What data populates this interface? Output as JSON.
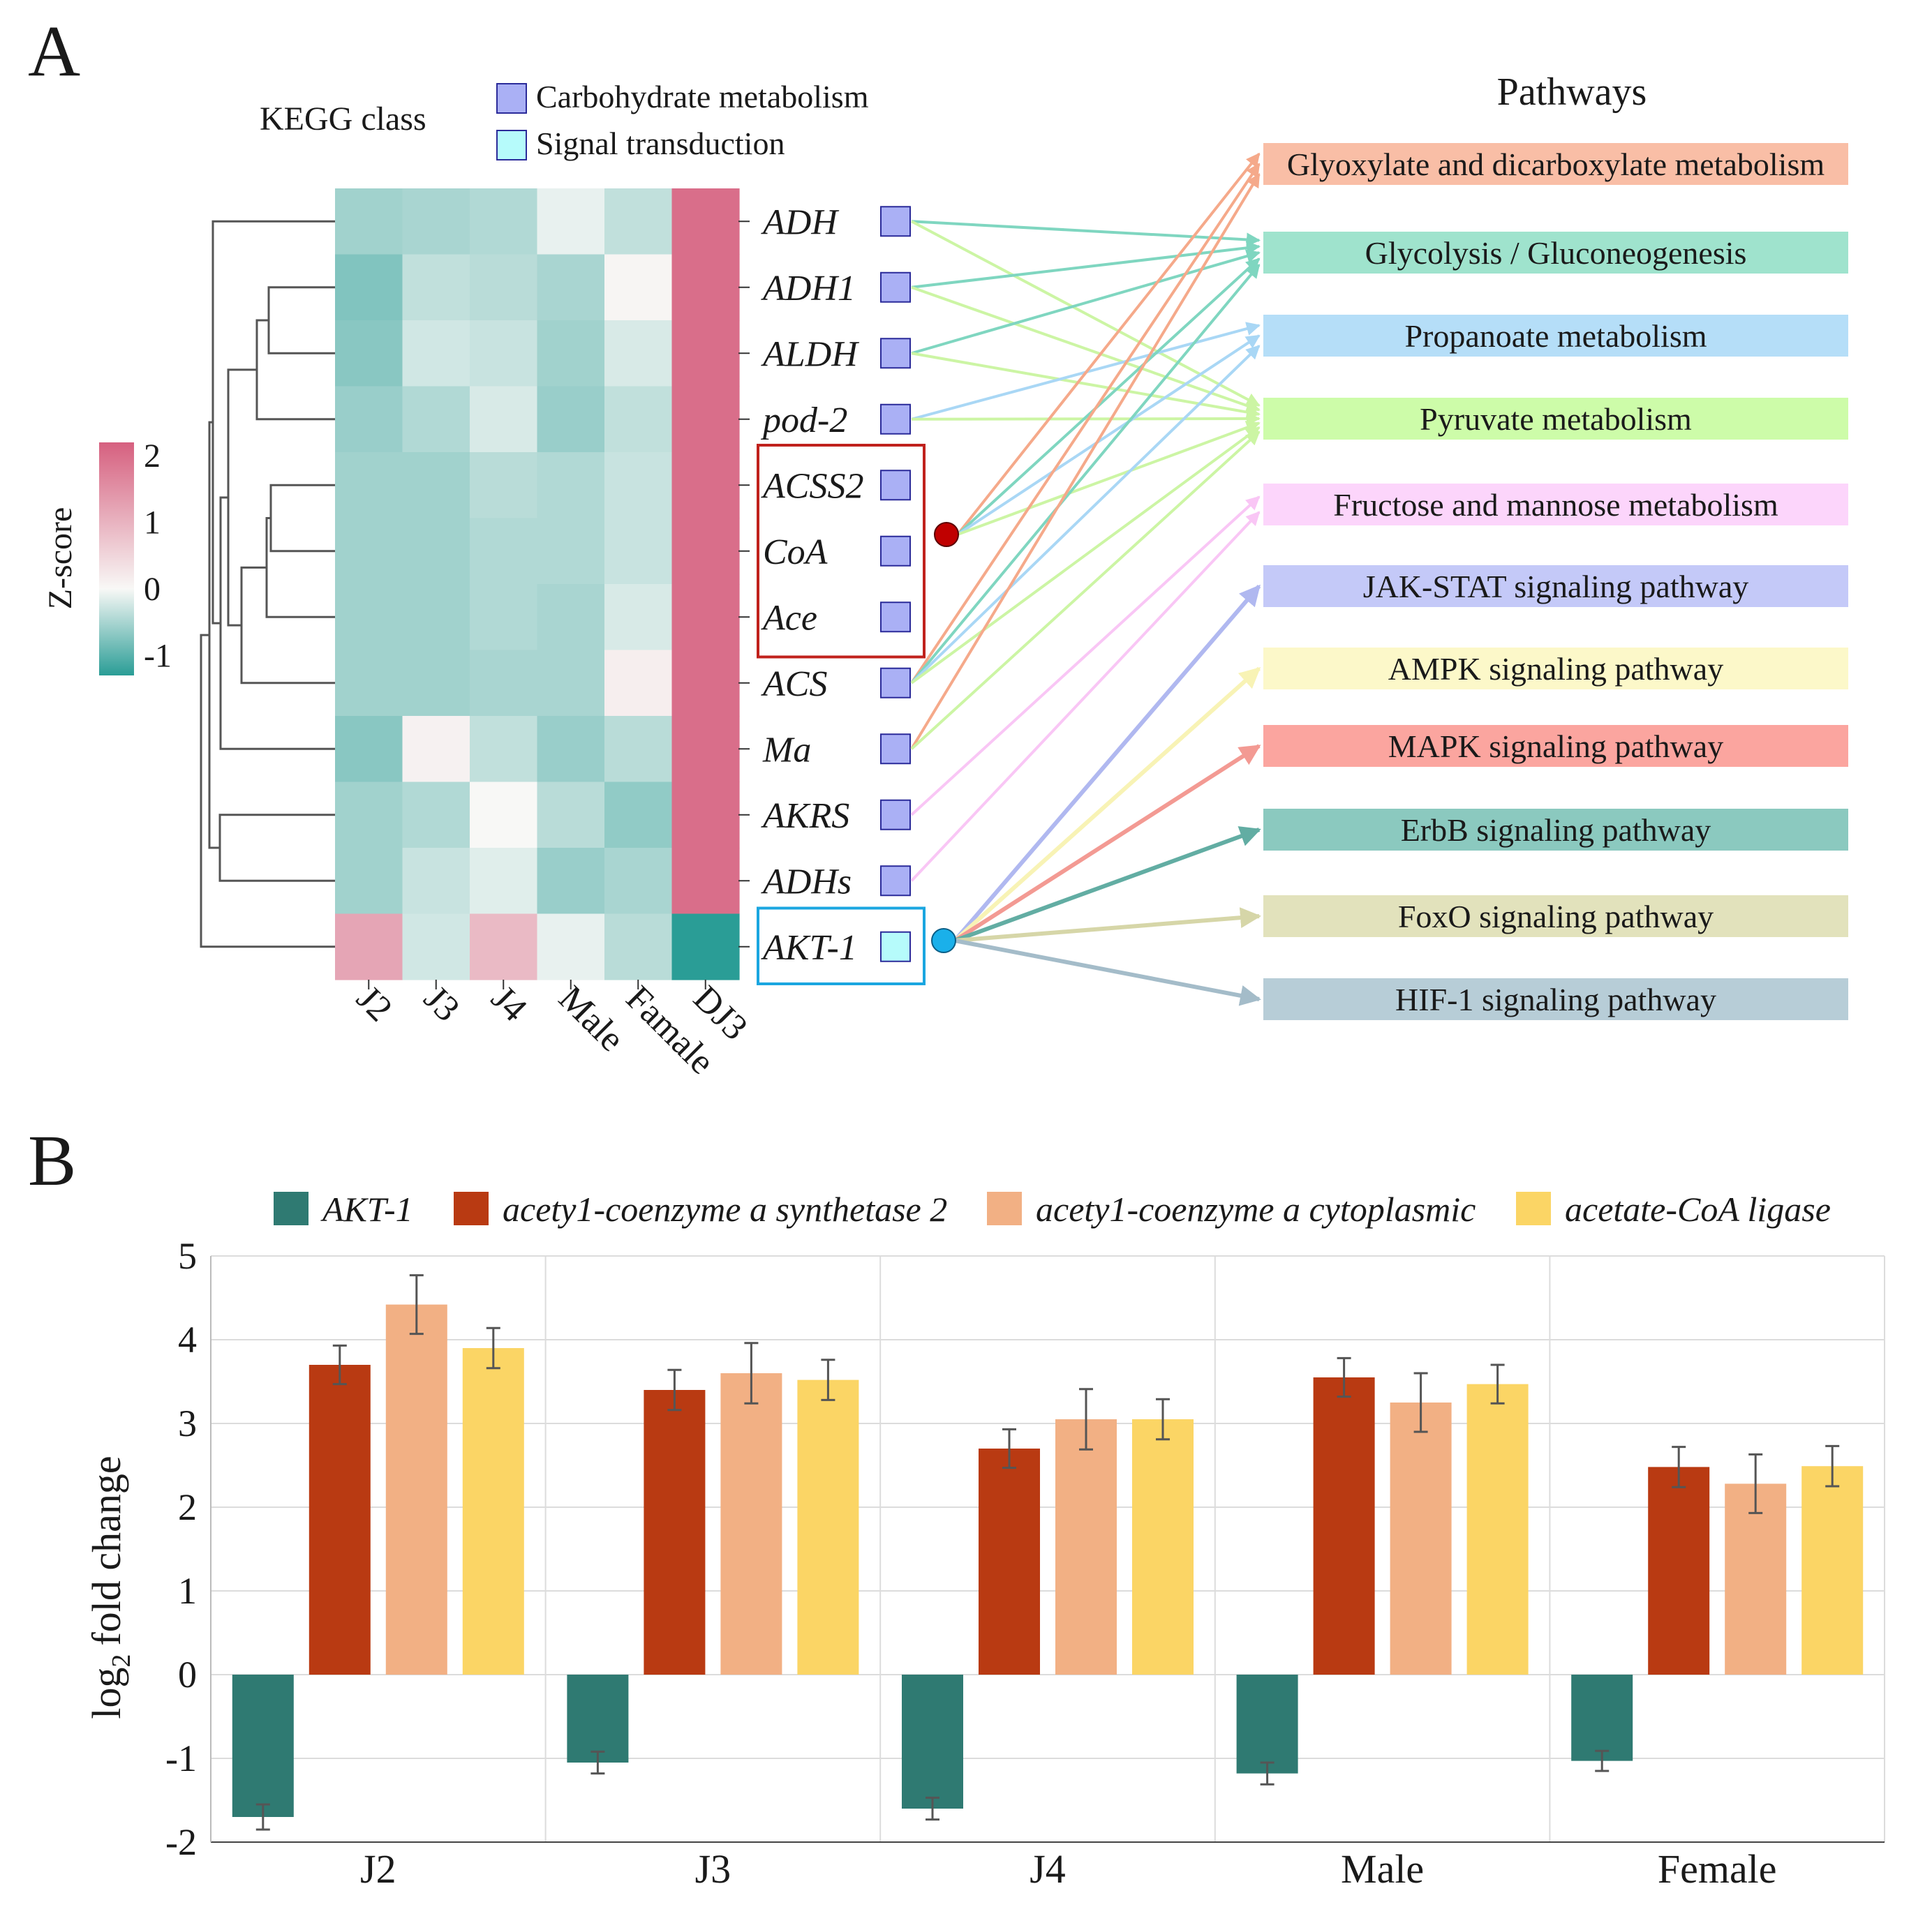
{
  "panel_a": {
    "label": "A",
    "kegg_title": "KEGG class",
    "kegg_legend": [
      {
        "label": "Carbohydrate metabolism",
        "color": "#aab0f5"
      },
      {
        "label": "Signal transduction",
        "color": "#b6fbfb"
      }
    ],
    "pathways_title": "Pathways",
    "zscore_title": "Z-score",
    "zscore_ticks": [
      "2",
      "1",
      "0",
      "-1"
    ],
    "zscore_range": [
      -1.3,
      2.2
    ],
    "colors": {
      "low": "#2a9d96",
      "mid": "#f8f8f6",
      "high": "#d6607f",
      "class_box_border": "#2b2b9a",
      "dendro": "#555555",
      "red_dot": "#c00000",
      "blue_dot": "#1ab0ea"
    },
    "columns": [
      "J2",
      "J3",
      "J4",
      "Male",
      "Famale",
      "DJ3"
    ],
    "genes": [
      "ADH",
      "ADH1",
      "ALDH",
      "pod-2",
      "ACSS2",
      "CoA",
      "Ace",
      "ACS",
      "Ma",
      "AKRS",
      "ADHs",
      "AKT-1"
    ],
    "gene_class": [
      0,
      0,
      0,
      0,
      0,
      0,
      0,
      0,
      0,
      0,
      0,
      1
    ],
    "zscores": [
      [
        -0.55,
        -0.5,
        -0.45,
        -0.1,
        -0.35,
        2.0
      ],
      [
        -0.75,
        -0.35,
        -0.4,
        -0.5,
        0.05,
        2.0
      ],
      [
        -0.7,
        -0.25,
        -0.3,
        -0.55,
        -0.2,
        2.0
      ],
      [
        -0.6,
        -0.45,
        -0.2,
        -0.6,
        -0.35,
        2.0
      ],
      [
        -0.55,
        -0.55,
        -0.4,
        -0.45,
        -0.3,
        2.0
      ],
      [
        -0.55,
        -0.55,
        -0.45,
        -0.45,
        -0.3,
        2.0
      ],
      [
        -0.55,
        -0.55,
        -0.45,
        -0.5,
        -0.2,
        2.0
      ],
      [
        -0.55,
        -0.55,
        -0.5,
        -0.5,
        0.15,
        2.0
      ],
      [
        -0.7,
        0.1,
        -0.35,
        -0.6,
        -0.4,
        2.0
      ],
      [
        -0.55,
        -0.45,
        0.0,
        -0.4,
        -0.65,
        2.0
      ],
      [
        -0.55,
        -0.3,
        -0.15,
        -0.6,
        -0.5,
        2.0
      ],
      [
        1.2,
        -0.25,
        0.9,
        -0.1,
        -0.4,
        -1.3
      ]
    ],
    "pathways": [
      {
        "name": "Glyoxylate and dicarboxylate metabolism",
        "color": "#f9bea6"
      },
      {
        "name": "Glycolysis / Gluconeogenesis",
        "color": "#9fe3cd"
      },
      {
        "name": "Propanoate metabolism",
        "color": "#b5def8"
      },
      {
        "name": "Pyruvate metabolism",
        "color": "#cdfca9"
      },
      {
        "name": "Fructose and mannose metabolism",
        "color": "#fcd5fb"
      },
      {
        "name": "JAK-STAT signaling pathway",
        "color": "#c4c9f8"
      },
      {
        "name": "AMPK signaling pathway",
        "color": "#fcf8c9"
      },
      {
        "name": "MAPK signaling pathway",
        "color": "#fba59f"
      },
      {
        "name": "ErbB signaling pathway",
        "color": "#8bc9bf"
      },
      {
        "name": "FoxO signaling pathway",
        "color": "#e2e2bc"
      },
      {
        "name": "HIF-1 signaling pathway",
        "color": "#b7cdd7"
      }
    ],
    "links": [
      {
        "gene": "ADH",
        "pathway": 1,
        "color": "#7fd6c0"
      },
      {
        "gene": "ADH",
        "pathway": 3,
        "color": "#ccf5a4"
      },
      {
        "gene": "ADH1",
        "pathway": 1,
        "color": "#7fd6c0"
      },
      {
        "gene": "ADH1",
        "pathway": 3,
        "color": "#ccf5a4"
      },
      {
        "gene": "ALDH",
        "pathway": 1,
        "color": "#7fd6c0"
      },
      {
        "gene": "ALDH",
        "pathway": 3,
        "color": "#ccf5a4"
      },
      {
        "gene": "pod-2",
        "pathway": 2,
        "color": "#a9d7f5"
      },
      {
        "gene": "pod-2",
        "pathway": 3,
        "color": "#ccf5a4"
      },
      {
        "gene": "@red",
        "pathway": 0,
        "color": "#f5a98a"
      },
      {
        "gene": "@red",
        "pathway": 1,
        "color": "#7fd6c0"
      },
      {
        "gene": "@red",
        "pathway": 2,
        "color": "#a9d7f5"
      },
      {
        "gene": "@red",
        "pathway": 3,
        "color": "#ccf5a4"
      },
      {
        "gene": "ACS",
        "pathway": 0,
        "color": "#f5a98a"
      },
      {
        "gene": "ACS",
        "pathway": 1,
        "color": "#7fd6c0"
      },
      {
        "gene": "ACS",
        "pathway": 2,
        "color": "#a9d7f5"
      },
      {
        "gene": "ACS",
        "pathway": 3,
        "color": "#ccf5a4"
      },
      {
        "gene": "Ma",
        "pathway": 0,
        "color": "#f5a98a"
      },
      {
        "gene": "Ma",
        "pathway": 3,
        "color": "#ccf5a4"
      },
      {
        "gene": "AKRS",
        "pathway": 4,
        "color": "#f9c6f5"
      },
      {
        "gene": "ADHs",
        "pathway": 4,
        "color": "#f9c6f5"
      },
      {
        "gene": "@blue",
        "pathway": 5,
        "color": "#b0b8f0"
      },
      {
        "gene": "@blue",
        "pathway": 6,
        "color": "#f8f3b5"
      },
      {
        "gene": "@blue",
        "pathway": 7,
        "color": "#f39a93"
      },
      {
        "gene": "@blue",
        "pathway": 8,
        "color": "#62ada3"
      },
      {
        "gene": "@blue",
        "pathway": 9,
        "color": "#d6d6a8"
      },
      {
        "gene": "@blue",
        "pathway": 10,
        "color": "#a4bcc9"
      }
    ]
  },
  "chart_data": {
    "type": "bar",
    "label": "B",
    "categories": [
      "J2",
      "J3",
      "J4",
      "Male",
      "Female"
    ],
    "ylabel_main": "log",
    "ylabel_sub": "2",
    "ylabel_rest": "fold change",
    "ylim": [
      -2,
      5
    ],
    "yticks": [
      -2,
      -1,
      0,
      1,
      2,
      3,
      4,
      5
    ],
    "grid": true,
    "legend_position": "top",
    "series": [
      {
        "name": "AKT-1",
        "color": "#2f7a72",
        "values": [
          -1.7,
          -1.05,
          -1.6,
          -1.18,
          -1.03
        ],
        "errors": [
          0.15,
          0.13,
          0.13,
          0.13,
          0.12
        ]
      },
      {
        "name": "acety1-coenzyme a synthetase 2",
        "color": "#b93a12",
        "values": [
          3.7,
          3.4,
          2.7,
          3.55,
          2.48
        ],
        "errors": [
          0.23,
          0.24,
          0.23,
          0.23,
          0.24
        ]
      },
      {
        "name": "acety1-coenzyme a cytoplasmic",
        "color": "#f2b084",
        "values": [
          4.42,
          3.6,
          3.05,
          3.25,
          2.28
        ],
        "errors": [
          0.35,
          0.36,
          0.36,
          0.35,
          0.35
        ]
      },
      {
        "name": "acetate-CoA ligase",
        "color": "#fbd565",
        "values": [
          3.9,
          3.52,
          3.05,
          3.47,
          2.49
        ],
        "errors": [
          0.24,
          0.24,
          0.24,
          0.23,
          0.24
        ]
      }
    ]
  }
}
